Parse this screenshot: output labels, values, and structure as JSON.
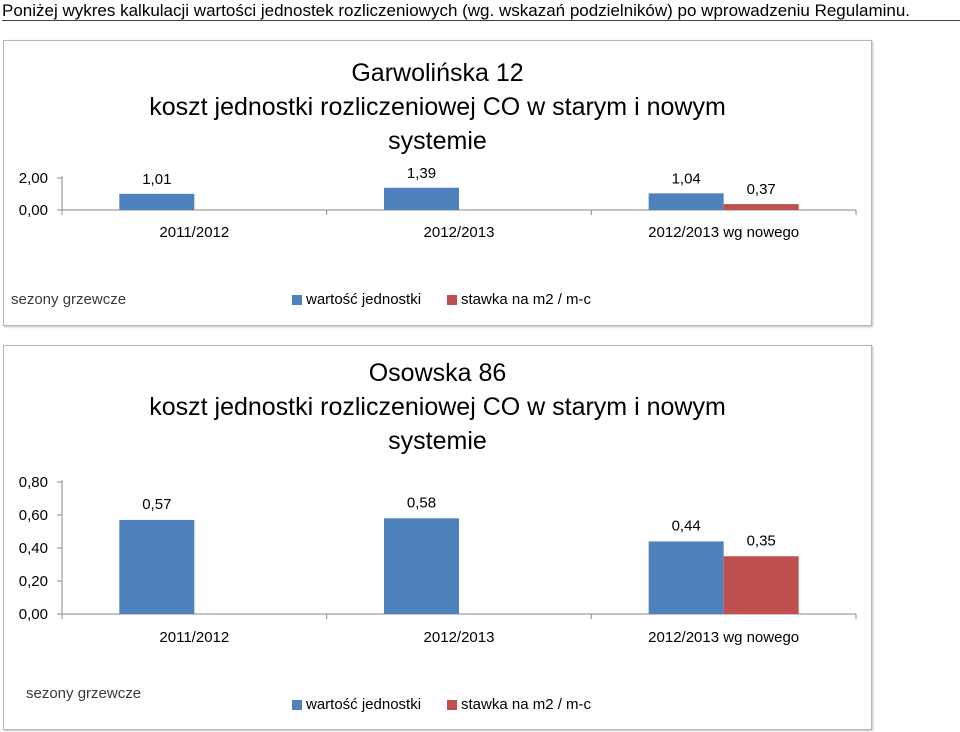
{
  "intro_text": "Poniżej wykres kalkulacji wartości jednostek rozliczeniowych (wg. wskazań podzielników) po wprowadzeniu Regulaminu.",
  "colors": {
    "series_1": "#4f81bd",
    "series_2": "#c0504d",
    "axis": "#8a8a8a",
    "text": "#000000"
  },
  "chart_data": [
    {
      "type": "bar",
      "title_lines": [
        "Garwolińska 12",
        "koszt jednostki rozliczeniowej CO w starym i nowym",
        "systemie"
      ],
      "categories": [
        "2011/2012",
        "2012/2013",
        "2012/2013 wg nowego"
      ],
      "series": [
        {
          "name": "wartość jednostki",
          "values": [
            1.01,
            1.39,
            1.04
          ],
          "labels": [
            "1,01",
            "1,39",
            "1,04"
          ]
        },
        {
          "name": "stawka na m2 / m-c",
          "values": [
            null,
            null,
            0.37
          ],
          "labels": [
            "",
            "",
            "0,37"
          ]
        }
      ],
      "yticks": [
        "0,00",
        "2,00"
      ],
      "ylim": [
        0,
        2
      ],
      "xaxis_label": "sezony grzewcze",
      "legend": "bottom"
    },
    {
      "type": "bar",
      "title_lines": [
        "Osowska 86",
        "koszt jednostki rozliczeniowej CO w starym i nowym",
        "systemie"
      ],
      "categories": [
        "2011/2012",
        "2012/2013",
        "2012/2013 wg nowego"
      ],
      "series": [
        {
          "name": "wartość jednostki",
          "values": [
            0.57,
            0.58,
            0.44
          ],
          "labels": [
            "0,57",
            "0,58",
            "0,44"
          ]
        },
        {
          "name": "stawka na m2 / m-c",
          "values": [
            null,
            null,
            0.35
          ],
          "labels": [
            "",
            "",
            "0,35"
          ]
        }
      ],
      "yticks": [
        "0,00",
        "0,20",
        "0,40",
        "0,60",
        "0,80"
      ],
      "ylim": [
        0,
        0.8
      ],
      "xaxis_label": "sezony grzewcze",
      "legend": "bottom"
    }
  ]
}
